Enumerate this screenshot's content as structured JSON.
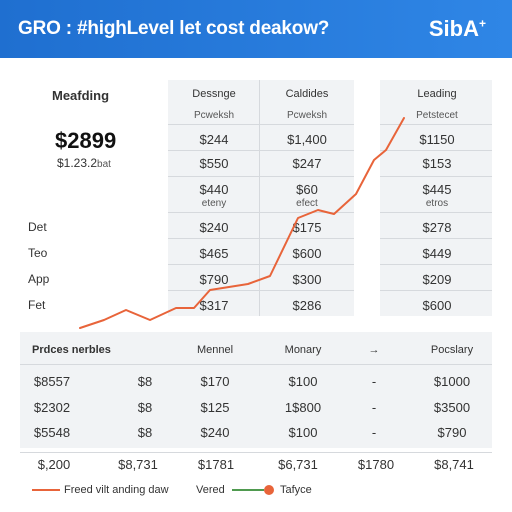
{
  "header": {
    "title": "GRO : #highLevel let cost deakow?",
    "brand": "SibA",
    "brand_mark": "+"
  },
  "colors": {
    "header_blue": "#2f86e6",
    "accent_orange": "#e8643a",
    "legend_green": "#4f9a4f",
    "panel_gray": "#f1f3f5"
  },
  "top_left": {
    "heading": "Meafding",
    "price": "$2899",
    "sub_price": "$1.23.2",
    "sub_price_suffix": "bat",
    "labels": [
      "Det",
      "Teo",
      "App",
      "Fet"
    ]
  },
  "top_table": {
    "col1_header": "Dessnge",
    "col1_sub": "Pcweksh",
    "col2_header": "Caldides",
    "col2_sub": "Pcweksh",
    "col3_header": "Leading",
    "col3_sub": "Petstecet",
    "col1_values": [
      "$244",
      "$550",
      "$440",
      "$240",
      "$465",
      "$790",
      "$317"
    ],
    "col2_values": [
      "$1,400",
      "$247",
      "$60",
      "$175",
      "$600",
      "$300",
      "$286"
    ],
    "col3_values": [
      "$1150",
      "$153",
      "$445",
      "$278",
      "$449",
      "$209",
      "$600"
    ],
    "col1_note": "eteny",
    "col2_note": "efect",
    "col3_note": "etros"
  },
  "bottom_table": {
    "headers": [
      "Prdces nerbles",
      "Mennel",
      "Monary",
      "→",
      "Pocslary"
    ],
    "rows": [
      [
        "$8557",
        "$8",
        "$170",
        "$100",
        "-",
        "$1000"
      ],
      [
        "$2302",
        "$8",
        "$125",
        "1$800",
        "-",
        "$3500"
      ],
      [
        "$5548",
        "$8",
        "$240",
        "$100",
        "-",
        "$790"
      ]
    ],
    "footer": [
      "$,200",
      "$8,731",
      "$1781",
      "$6,731",
      "$1780",
      "$8,741"
    ]
  },
  "legend": {
    "item1": "Freed vilt anding daw",
    "item2": "Vered",
    "item3": "Tafyce"
  }
}
